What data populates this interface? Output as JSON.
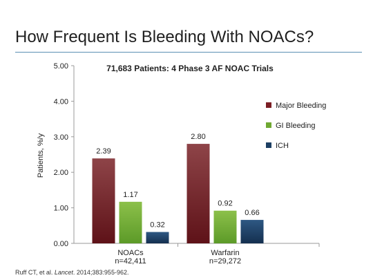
{
  "slide": {
    "title": "How Frequent Is Bleeding With NOACs?",
    "citation_authors": "Ruff CT, et al. ",
    "citation_journal": "Lancet",
    "citation_rest": ". 2014;383:955-962."
  },
  "chart_data": {
    "type": "bar",
    "title": "71,683 Patients: 4 Phase 3 AF NOAC Trials",
    "ylabel": "Patients, %/y",
    "xlabel": "",
    "ylim": [
      0,
      5
    ],
    "yticks": [
      "0.00",
      "1.00",
      "2.00",
      "3.00",
      "4.00",
      "5.00"
    ],
    "grid": false,
    "legend_position": "right",
    "categories": [
      "NOACs",
      "Warfarin"
    ],
    "category_sublabels": [
      "n=42,411",
      "n=29,272"
    ],
    "series": [
      {
        "name": "Major Bleeding",
        "values": [
          2.39,
          2.8
        ],
        "labels": [
          "2.39",
          "2.80"
        ],
        "color": "#7b1e24"
      },
      {
        "name": "GI Bleeding",
        "values": [
          1.17,
          0.92
        ],
        "labels": [
          "1.17",
          "0.92"
        ],
        "color": "#6fa832"
      },
      {
        "name": "ICH",
        "values": [
          0.32,
          0.66
        ],
        "labels": [
          "0.32",
          "0.66"
        ],
        "color": "#1d3f63"
      }
    ]
  }
}
